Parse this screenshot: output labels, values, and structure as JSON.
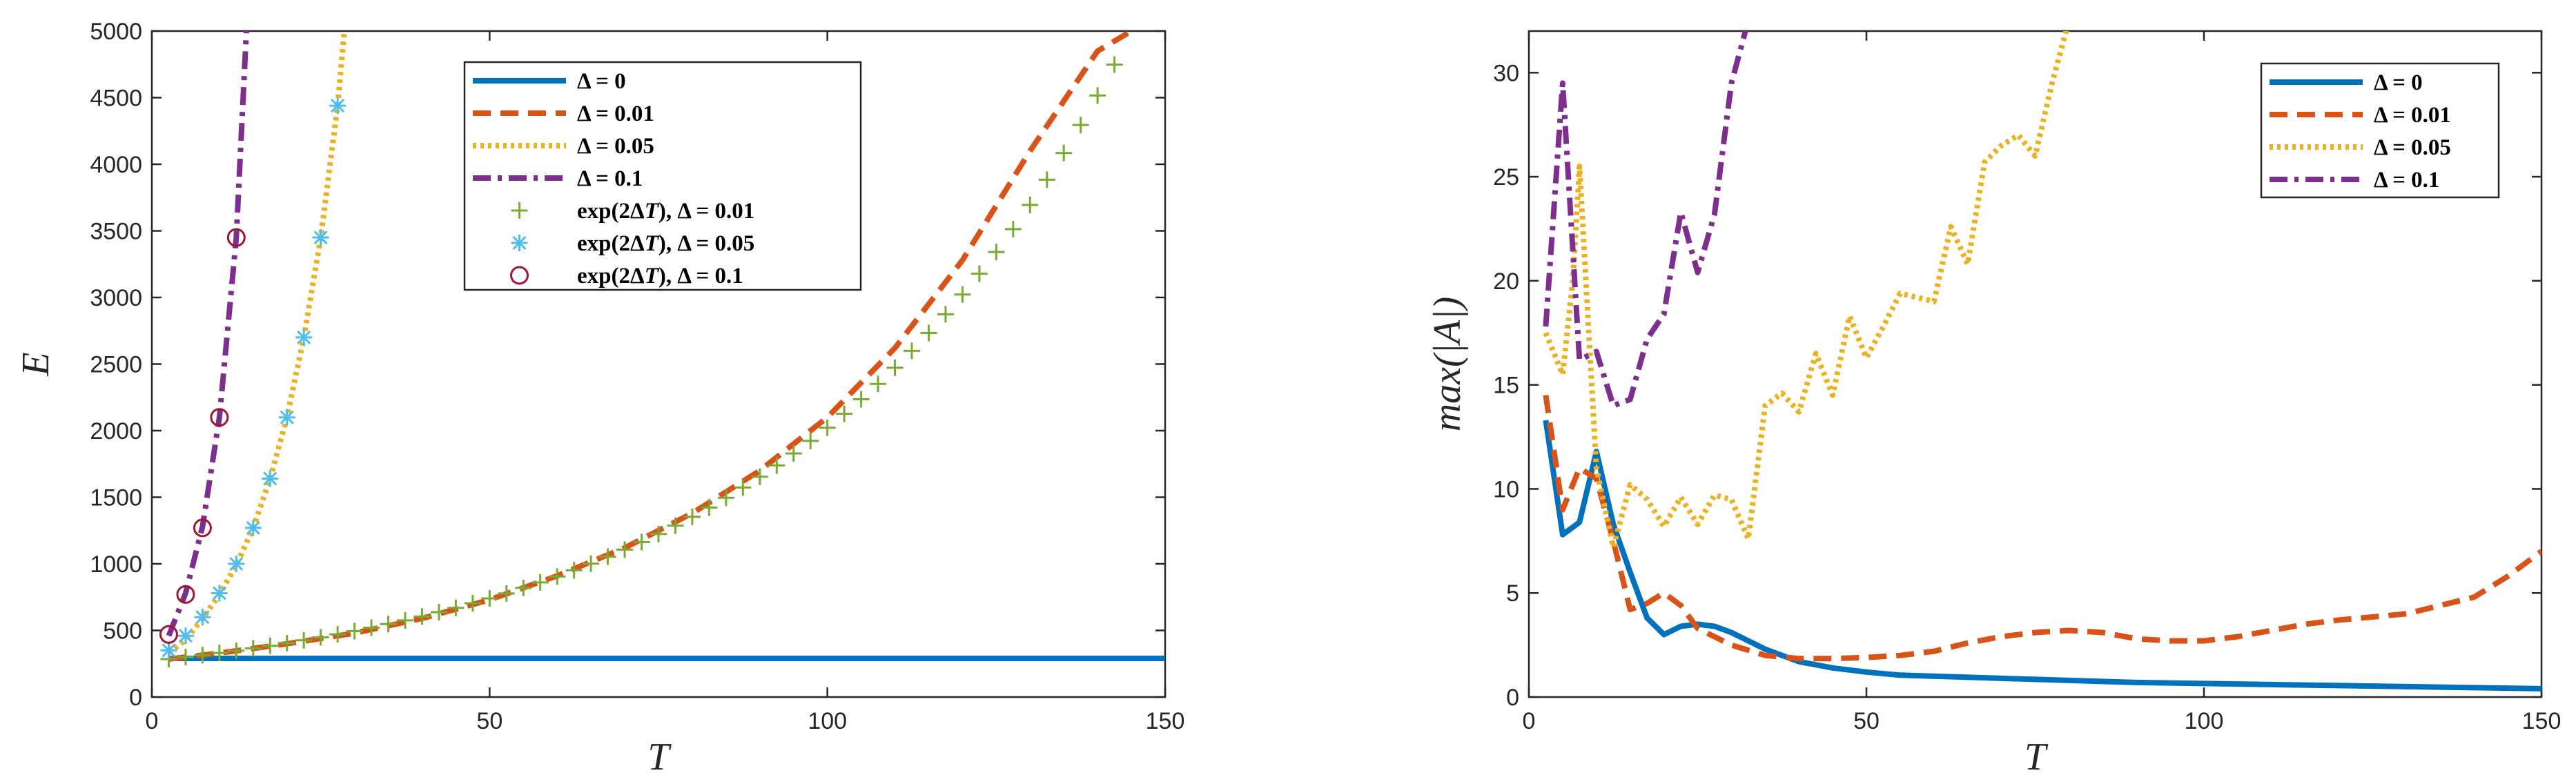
{
  "chart_data": [
    {
      "type": "line",
      "xlabel": "T",
      "ylabel": "E",
      "xlim": [
        0,
        150
      ],
      "ylim": [
        0,
        5000
      ],
      "xticks": [
        0,
        50,
        100,
        150
      ],
      "yticks": [
        0,
        500,
        1000,
        1500,
        2000,
        2500,
        3000,
        3500,
        4000,
        4500,
        5000
      ],
      "legend_position": "top-center",
      "series": [
        {
          "name": "Δ = 0",
          "label_parts": [
            "Δ = 0"
          ],
          "style": "solid",
          "color": "#0072BD",
          "x": [
            2.5,
            150
          ],
          "y": [
            290,
            290
          ]
        },
        {
          "name": "Δ = 0.01",
          "label_parts": [
            "Δ = 0.01"
          ],
          "style": "dashed",
          "color": "#D95319",
          "x": [
            2.5,
            10,
            20,
            30,
            40,
            50,
            60,
            70,
            80,
            90,
            100,
            110,
            120,
            130,
            140,
            145
          ],
          "y": [
            285,
            330,
            400,
            480,
            590,
            730,
            910,
            1120,
            1380,
            1700,
            2100,
            2620,
            3280,
            4100,
            4850,
            5000
          ]
        },
        {
          "name": "Δ = 0.05",
          "label_parts": [
            "Δ = 0.05"
          ],
          "style": "dotted",
          "color": "#EDB120",
          "x": [
            2.5,
            5,
            7.5,
            10,
            12.5,
            15,
            17.5,
            20,
            22.5,
            25,
            27.5,
            28.5
          ],
          "y": [
            330,
            430,
            590,
            770,
            990,
            1270,
            1640,
            2100,
            2700,
            3450,
            4440,
            5000
          ]
        },
        {
          "name": "Δ = 0.1",
          "label_parts": [
            "Δ = 0.1"
          ],
          "style": "dashdot",
          "color": "#7E2F8E",
          "x": [
            2.5,
            5,
            7.5,
            10,
            12.5,
            14
          ],
          "y": [
            460,
            780,
            1280,
            2100,
            3450,
            5000
          ]
        },
        {
          "name": "exp(2ΔT), Δ = 0.01",
          "label_parts": [
            "exp(2Δ",
            "T",
            "), Δ = 0.01"
          ],
          "marker": "plus",
          "color": "#77AC30",
          "x": [
            2.5,
            5,
            7.5,
            10,
            12.5,
            15,
            17.5,
            20,
            22.5,
            25,
            27.5,
            30,
            32.5,
            35,
            37.5,
            40,
            42.5,
            45,
            47.5,
            50,
            52.5,
            55,
            57.5,
            60,
            62.5,
            65,
            67.5,
            70,
            72.5,
            75,
            77.5,
            80,
            82.5,
            85,
            87.5,
            90,
            92.5,
            95,
            97.5,
            100,
            102.5,
            105,
            107.5,
            110,
            112.5,
            115,
            117.5,
            120,
            122.5,
            125,
            127.5,
            130,
            132.5,
            135,
            137.5,
            140,
            142.5
          ],
          "y": [
            285,
            300,
            315,
            331,
            348,
            366,
            385,
            405,
            426,
            448,
            471,
            495,
            521,
            548,
            576,
            605,
            637,
            670,
            704,
            740,
            778,
            819,
            861,
            905,
            952,
            1001,
            1053,
            1107,
            1164,
            1224,
            1287,
            1353,
            1423,
            1496,
            1573,
            1654,
            1739,
            1829,
            1923,
            2022,
            2126,
            2236,
            2351,
            2472,
            2599,
            2733,
            2874,
            3022,
            3178,
            3341,
            3513,
            3694,
            3884,
            4084,
            4295,
            4516,
            4748
          ]
        },
        {
          "name": "exp(2ΔT), Δ = 0.05",
          "label_parts": [
            "exp(2Δ",
            "T",
            "), Δ = 0.05"
          ],
          "marker": "asterisk",
          "color": "#4DBEEE",
          "x": [
            2.5,
            5,
            7.5,
            10,
            12.5,
            15,
            17.5,
            20,
            22.5,
            25,
            27.5
          ],
          "y": [
            350,
            460,
            600,
            780,
            1000,
            1270,
            1640,
            2100,
            2700,
            3450,
            4440
          ]
        },
        {
          "name": "exp(2ΔT), Δ = 0.1",
          "label_parts": [
            "exp(2Δ",
            "T",
            "), Δ = 0.1"
          ],
          "marker": "circle",
          "color": "#A2142F",
          "x": [
            2.5,
            5,
            7.5,
            10,
            12.5
          ],
          "y": [
            470,
            770,
            1270,
            2100,
            3450
          ]
        }
      ]
    },
    {
      "type": "line",
      "xlabel": "T",
      "ylabel": "max(|A|)",
      "xlim": [
        0,
        150
      ],
      "ylim": [
        0,
        32
      ],
      "xticks": [
        0,
        50,
        100,
        150
      ],
      "yticks": [
        0,
        5,
        10,
        15,
        20,
        25,
        30
      ],
      "legend_position": "top-right",
      "series": [
        {
          "name": "Δ = 0",
          "label_parts": [
            "Δ = 0"
          ],
          "style": "solid",
          "color": "#0072BD",
          "x": [
            2.5,
            5,
            7.5,
            10,
            12.5,
            15,
            17.5,
            20,
            22.5,
            25,
            27.5,
            30,
            35,
            40,
            45,
            50,
            55,
            60,
            70,
            80,
            90,
            100,
            110,
            120,
            130,
            140,
            150
          ],
          "y": [
            13.3,
            7.8,
            8.4,
            11.8,
            8.3,
            6.0,
            3.8,
            3.0,
            3.4,
            3.5,
            3.4,
            3.1,
            2.3,
            1.7,
            1.4,
            1.2,
            1.05,
            1.0,
            0.9,
            0.8,
            0.7,
            0.65,
            0.6,
            0.55,
            0.5,
            0.45,
            0.4
          ]
        },
        {
          "name": "Δ = 0.01",
          "label_parts": [
            "Δ = 0.01"
          ],
          "style": "dashed",
          "color": "#D95319",
          "x": [
            2.5,
            5,
            7.5,
            10,
            12.5,
            15,
            17.5,
            20,
            22.5,
            25,
            30,
            35,
            40,
            45,
            50,
            55,
            60,
            65,
            70,
            75,
            80,
            85,
            90,
            95,
            100,
            105,
            110,
            115,
            120,
            130,
            140,
            145,
            150
          ],
          "y": [
            14.5,
            9.0,
            11.0,
            10.5,
            7.5,
            4.2,
            4.5,
            5.0,
            4.4,
            3.3,
            2.5,
            2.0,
            1.85,
            1.85,
            1.9,
            2.0,
            2.2,
            2.6,
            2.9,
            3.1,
            3.2,
            3.1,
            2.8,
            2.7,
            2.7,
            2.9,
            3.2,
            3.5,
            3.7,
            4.0,
            4.8,
            5.8,
            7.0
          ]
        },
        {
          "name": "Δ = 0.05",
          "label_parts": [
            "Δ = 0.05"
          ],
          "style": "dotted",
          "color": "#EDB120",
          "x": [
            2.5,
            5,
            6.5,
            7.5,
            10,
            12.5,
            15,
            17.5,
            20,
            22.5,
            25,
            27.5,
            30,
            32.5,
            35,
            37.5,
            40,
            42.5,
            45,
            47.5,
            50,
            52.5,
            55,
            57.5,
            60,
            62.5,
            65,
            67.5,
            70,
            72.5,
            75,
            77.5,
            80
          ],
          "y": [
            17.5,
            15.5,
            20.0,
            25.5,
            11.0,
            7.2,
            10.2,
            9.5,
            8.2,
            9.6,
            8.3,
            9.7,
            9.5,
            7.6,
            14.0,
            14.6,
            13.7,
            16.5,
            14.5,
            18.3,
            16.3,
            17.8,
            19.4,
            19.2,
            19.0,
            22.6,
            20.8,
            25.7,
            26.5,
            27.0,
            26.0,
            29.5,
            32.5
          ]
        },
        {
          "name": "Δ = 0.1",
          "label_parts": [
            "Δ = 0.1"
          ],
          "style": "dashdot",
          "color": "#7E2F8E",
          "x": [
            2.5,
            5,
            7.5,
            10,
            12.5,
            15,
            17.5,
            20,
            22.5,
            25,
            27.5,
            30,
            32.5
          ],
          "y": [
            17.8,
            29.5,
            16.2,
            16.6,
            14.0,
            14.3,
            17.2,
            18.4,
            23.3,
            20.4,
            23.2,
            29.5,
            32.5
          ]
        }
      ]
    }
  ]
}
